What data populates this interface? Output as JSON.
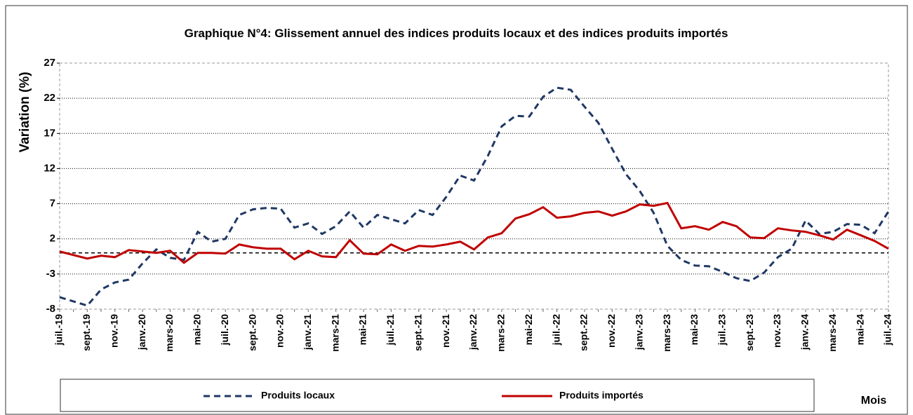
{
  "chart_data": {
    "type": "line",
    "title": "Graphique N°4: Glissement annuel des indices produits locaux et des indices produits importés",
    "y_label": "Variation (%)",
    "x_label": "Mois",
    "categories": [
      "juil.-19",
      null,
      "sept.-19",
      null,
      "nov.-19",
      null,
      "janv.-20",
      null,
      "mars-20",
      null,
      "mai-20",
      null,
      "juil.-20",
      null,
      "sept.-20",
      null,
      "nov.-20",
      null,
      "janv.-21",
      null,
      "mars-21",
      null,
      "mai-21",
      null,
      "juil.-21",
      null,
      "sept.-21",
      null,
      "nov.-21",
      null,
      "janv.-22",
      null,
      "mars-22",
      null,
      "mai-22",
      null,
      "juil.-22",
      null,
      "sept.-22",
      null,
      "nov.-22",
      null,
      "janv.-23",
      null,
      "mars-23",
      null,
      "mai-23",
      null,
      "juil.-23",
      null,
      "sept.-23",
      null,
      "nov.-23",
      null,
      "janv.-24",
      null,
      "mars-24",
      null,
      "mai-24",
      null,
      "juil.-24"
    ],
    "series": [
      {
        "name": "Produits locaux",
        "color": "#1f3864",
        "dash": true,
        "values": [
          -6.3,
          -6.9,
          -7.5,
          -5.2,
          -4.2,
          -3.8,
          -1.5,
          0.5,
          -0.7,
          -1.0,
          3.0,
          1.6,
          2.0,
          5.4,
          6.2,
          6.4,
          6.3,
          3.6,
          4.2,
          2.7,
          3.8,
          5.9,
          3.6,
          5.4,
          4.8,
          4.2,
          6.1,
          5.4,
          8.0,
          11.0,
          10.3,
          13.8,
          18.0,
          19.5,
          19.4,
          22.2,
          23.5,
          23.2,
          20.8,
          18.5,
          14.8,
          11.2,
          8.8,
          5.7,
          1.0,
          -1.0,
          -1.8,
          -1.9,
          -2.7,
          -3.6,
          -4.0,
          -2.8,
          -0.6,
          0.6,
          4.6,
          2.7,
          3.0,
          4.1,
          4.0,
          2.8,
          5.9
        ]
      },
      {
        "name": "Produits importés",
        "color": "#c00000",
        "dash": false,
        "values": [
          0.2,
          -0.3,
          -0.8,
          -0.4,
          -0.6,
          0.4,
          0.2,
          0.0,
          0.3,
          -1.4,
          0.0,
          0.0,
          -0.1,
          1.2,
          0.8,
          0.6,
          0.6,
          -0.9,
          0.3,
          -0.5,
          -0.6,
          1.8,
          -0.1,
          -0.2,
          1.2,
          0.3,
          1.0,
          0.9,
          1.2,
          1.6,
          0.5,
          2.2,
          2.8,
          4.9,
          5.5,
          6.5,
          5.0,
          5.2,
          5.7,
          5.9,
          5.3,
          5.9,
          6.9,
          6.7,
          7.1,
          3.5,
          3.8,
          3.3,
          4.4,
          3.8,
          2.2,
          2.1,
          3.5,
          3.2,
          3.0,
          2.5,
          1.9,
          3.3,
          2.5,
          1.7,
          0.6
        ]
      }
    ],
    "ylim": [
      -8,
      27
    ],
    "yticks": [
      -8,
      -3,
      2,
      7,
      12,
      17,
      22,
      27
    ],
    "grid": true,
    "reference_line": 0,
    "legend": "bottom"
  }
}
